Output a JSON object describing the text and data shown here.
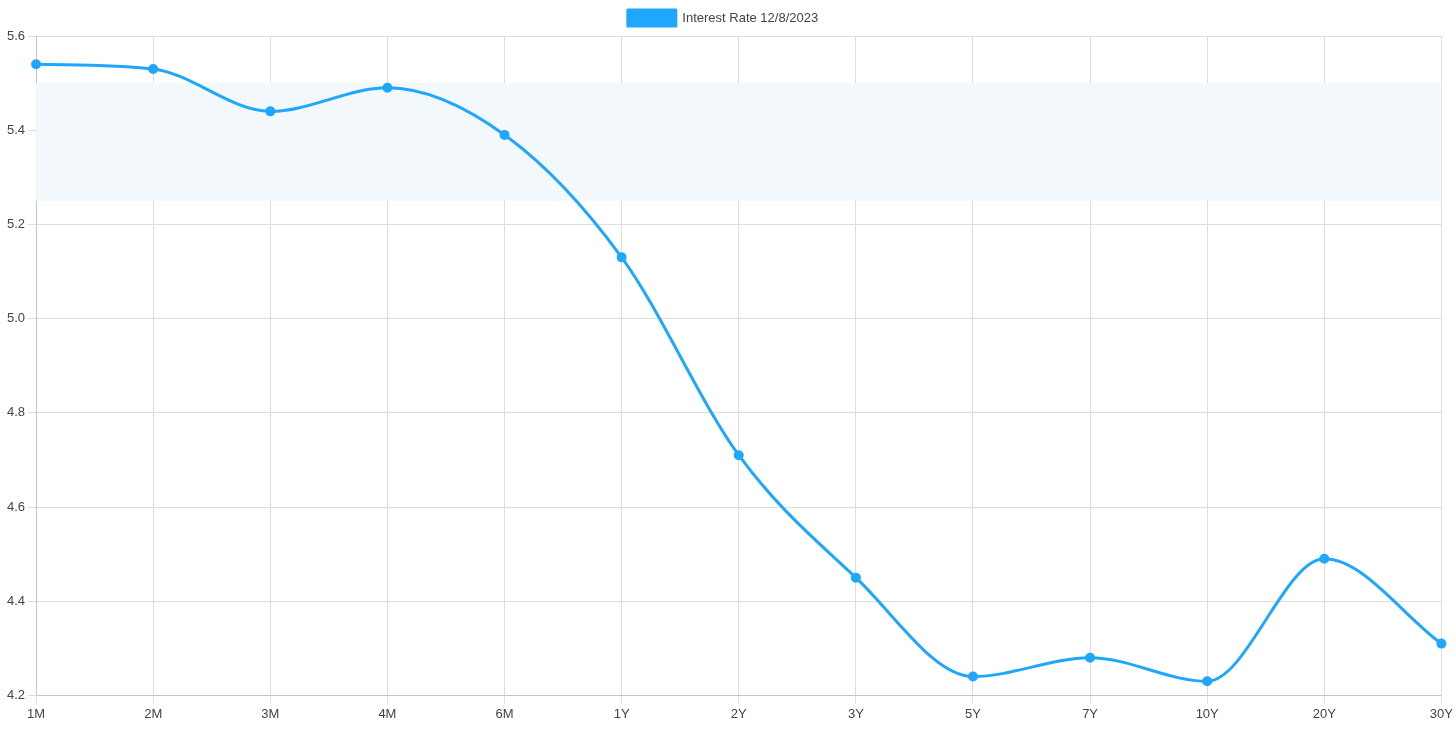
{
  "chart_data": {
    "type": "line",
    "categories": [
      "1M",
      "2M",
      "3M",
      "4M",
      "6M",
      "1Y",
      "2Y",
      "3Y",
      "5Y",
      "7Y",
      "10Y",
      "20Y",
      "30Y"
    ],
    "series": [
      {
        "name": "Interest Rate 12/8/2023",
        "color": "#1ea7fd",
        "values": [
          5.54,
          5.53,
          5.44,
          5.49,
          5.39,
          5.13,
          4.71,
          4.45,
          4.24,
          4.28,
          4.23,
          4.49,
          4.31
        ]
      }
    ],
    "ylim": [
      4.2,
      5.6
    ],
    "yticks": [
      4.2,
      4.4,
      4.6,
      4.8,
      {
        "value": 5,
        "label": "5.0"
      },
      5.2,
      5.4,
      5.6
    ],
    "bands": [
      {
        "axis": "y",
        "from": 5.25,
        "to": 5.5,
        "color": "#f3f8fd"
      }
    ],
    "grid": true,
    "legend": "top",
    "marker": "circle",
    "line_style": "solid"
  }
}
